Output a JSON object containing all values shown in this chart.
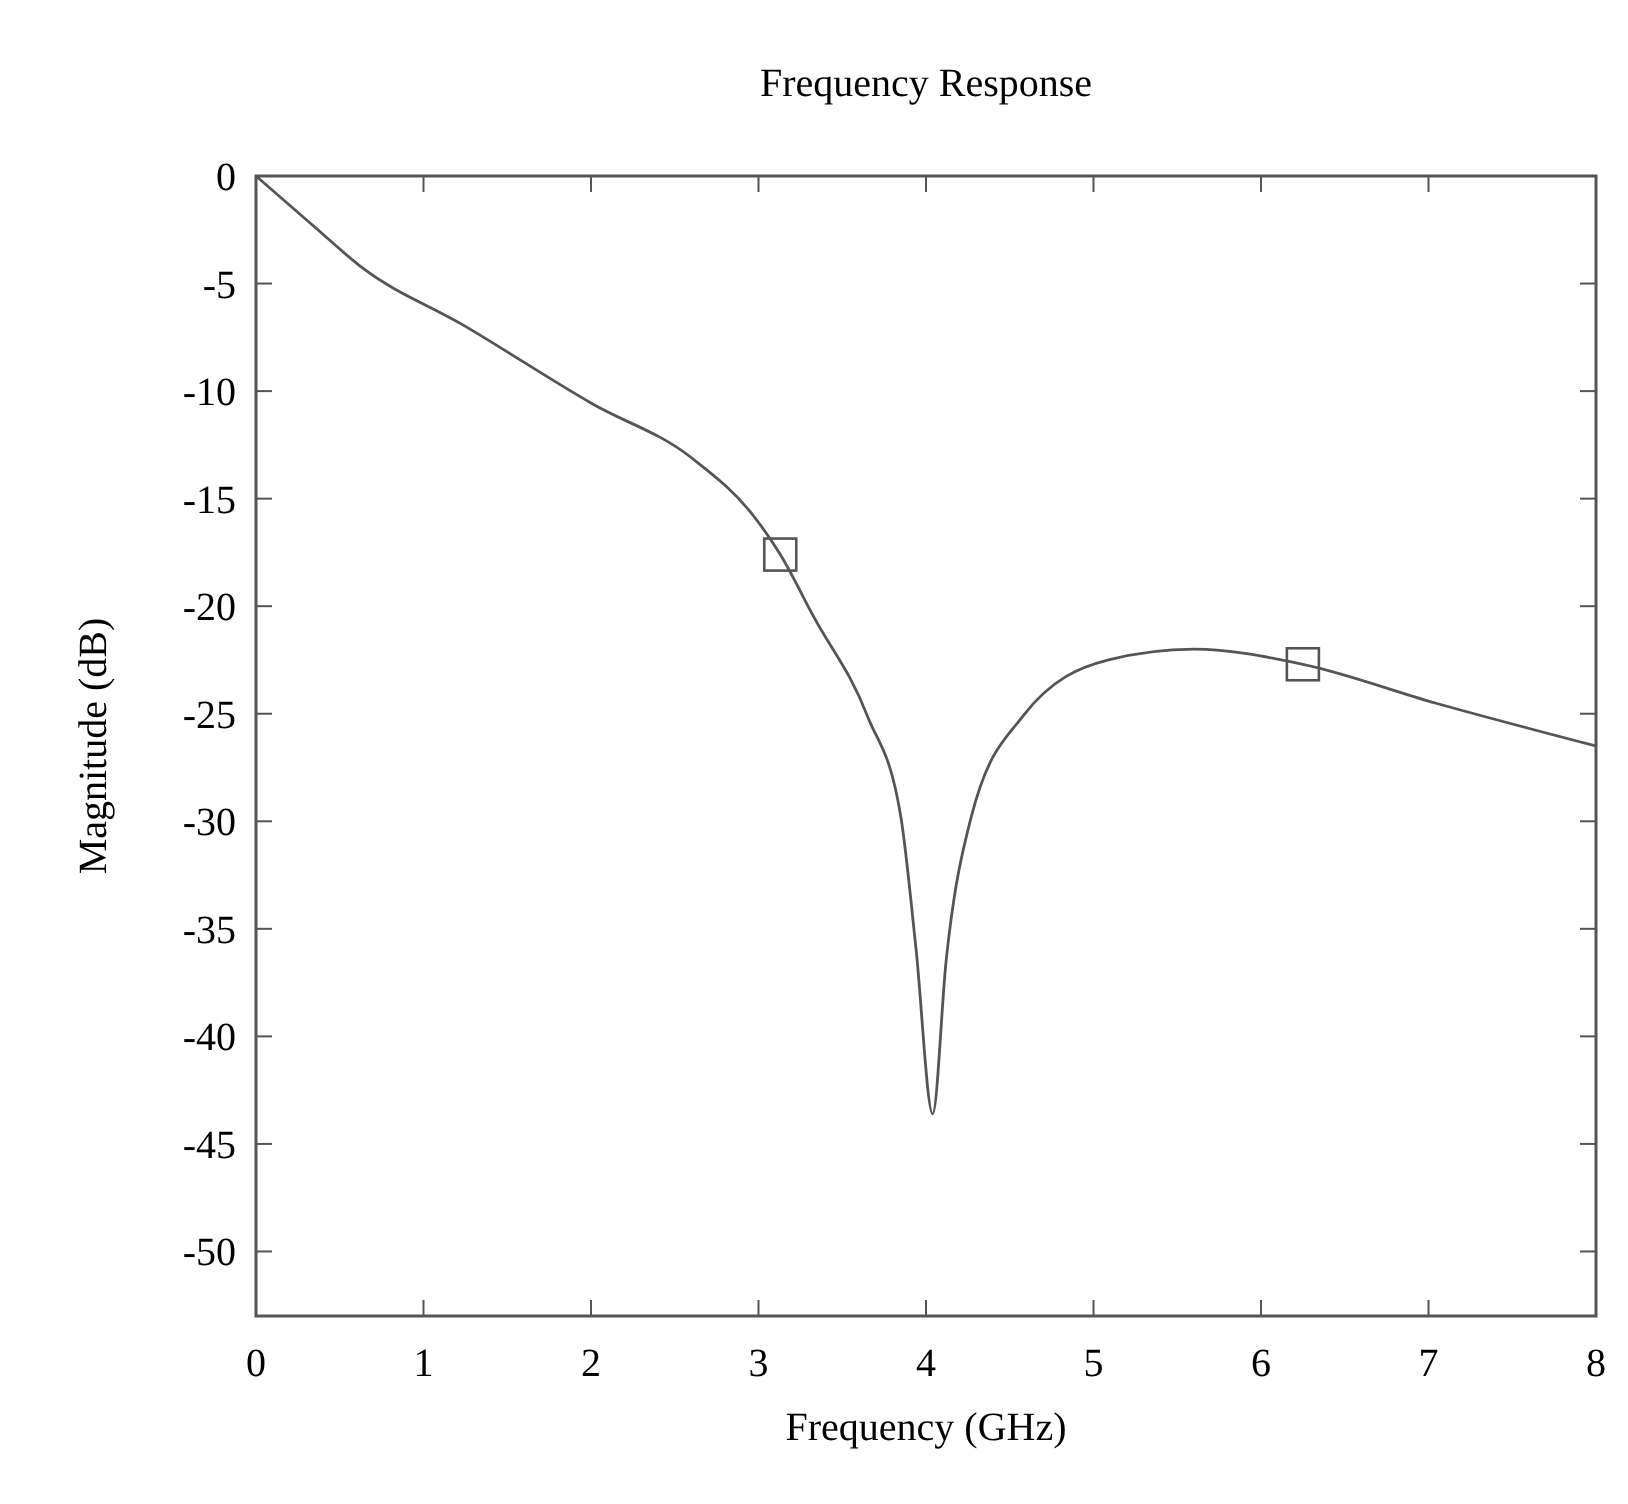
{
  "chart_data": {
    "type": "line",
    "title": "Frequency Response",
    "xlabel": "Frequency (GHz)",
    "ylabel": "Magnitude (dB)",
    "xlim": [
      0,
      8
    ],
    "ylim": [
      -53,
      0
    ],
    "xticks": [
      0,
      1,
      2,
      3,
      4,
      5,
      6,
      7,
      8
    ],
    "yticks": [
      0,
      -5,
      -10,
      -15,
      -20,
      -25,
      -30,
      -35,
      -40,
      -45,
      -50
    ],
    "grid": false,
    "series": [
      {
        "color": "#555555",
        "marker": "none",
        "line_style": "solid",
        "x": [
          0,
          0.34,
          0.64,
          1.23,
          2.01,
          2.6,
          2.98,
          3.13,
          3.33,
          3.65,
          3.85,
          3.94,
          4.04,
          4.12,
          4.27,
          4.58,
          5.09,
          5.6,
          6.25,
          7.04,
          8
        ],
        "values": [
          0,
          -2.3,
          -4.3,
          -6.9,
          -10.6,
          -13.1,
          -15.9,
          -17.6,
          -20.5,
          -25.1,
          -29.8,
          -35.9,
          -43.6,
          -36.5,
          -29.8,
          -25.1,
          -22.5,
          -22,
          -22.7,
          -24.5,
          -26.5
        ]
      },
      {
        "type": "scatter",
        "color": "#555555",
        "marker": "square",
        "x": [
          3.13,
          6.25
        ],
        "values": [
          -17.6,
          -22.7
        ]
      }
    ]
  }
}
